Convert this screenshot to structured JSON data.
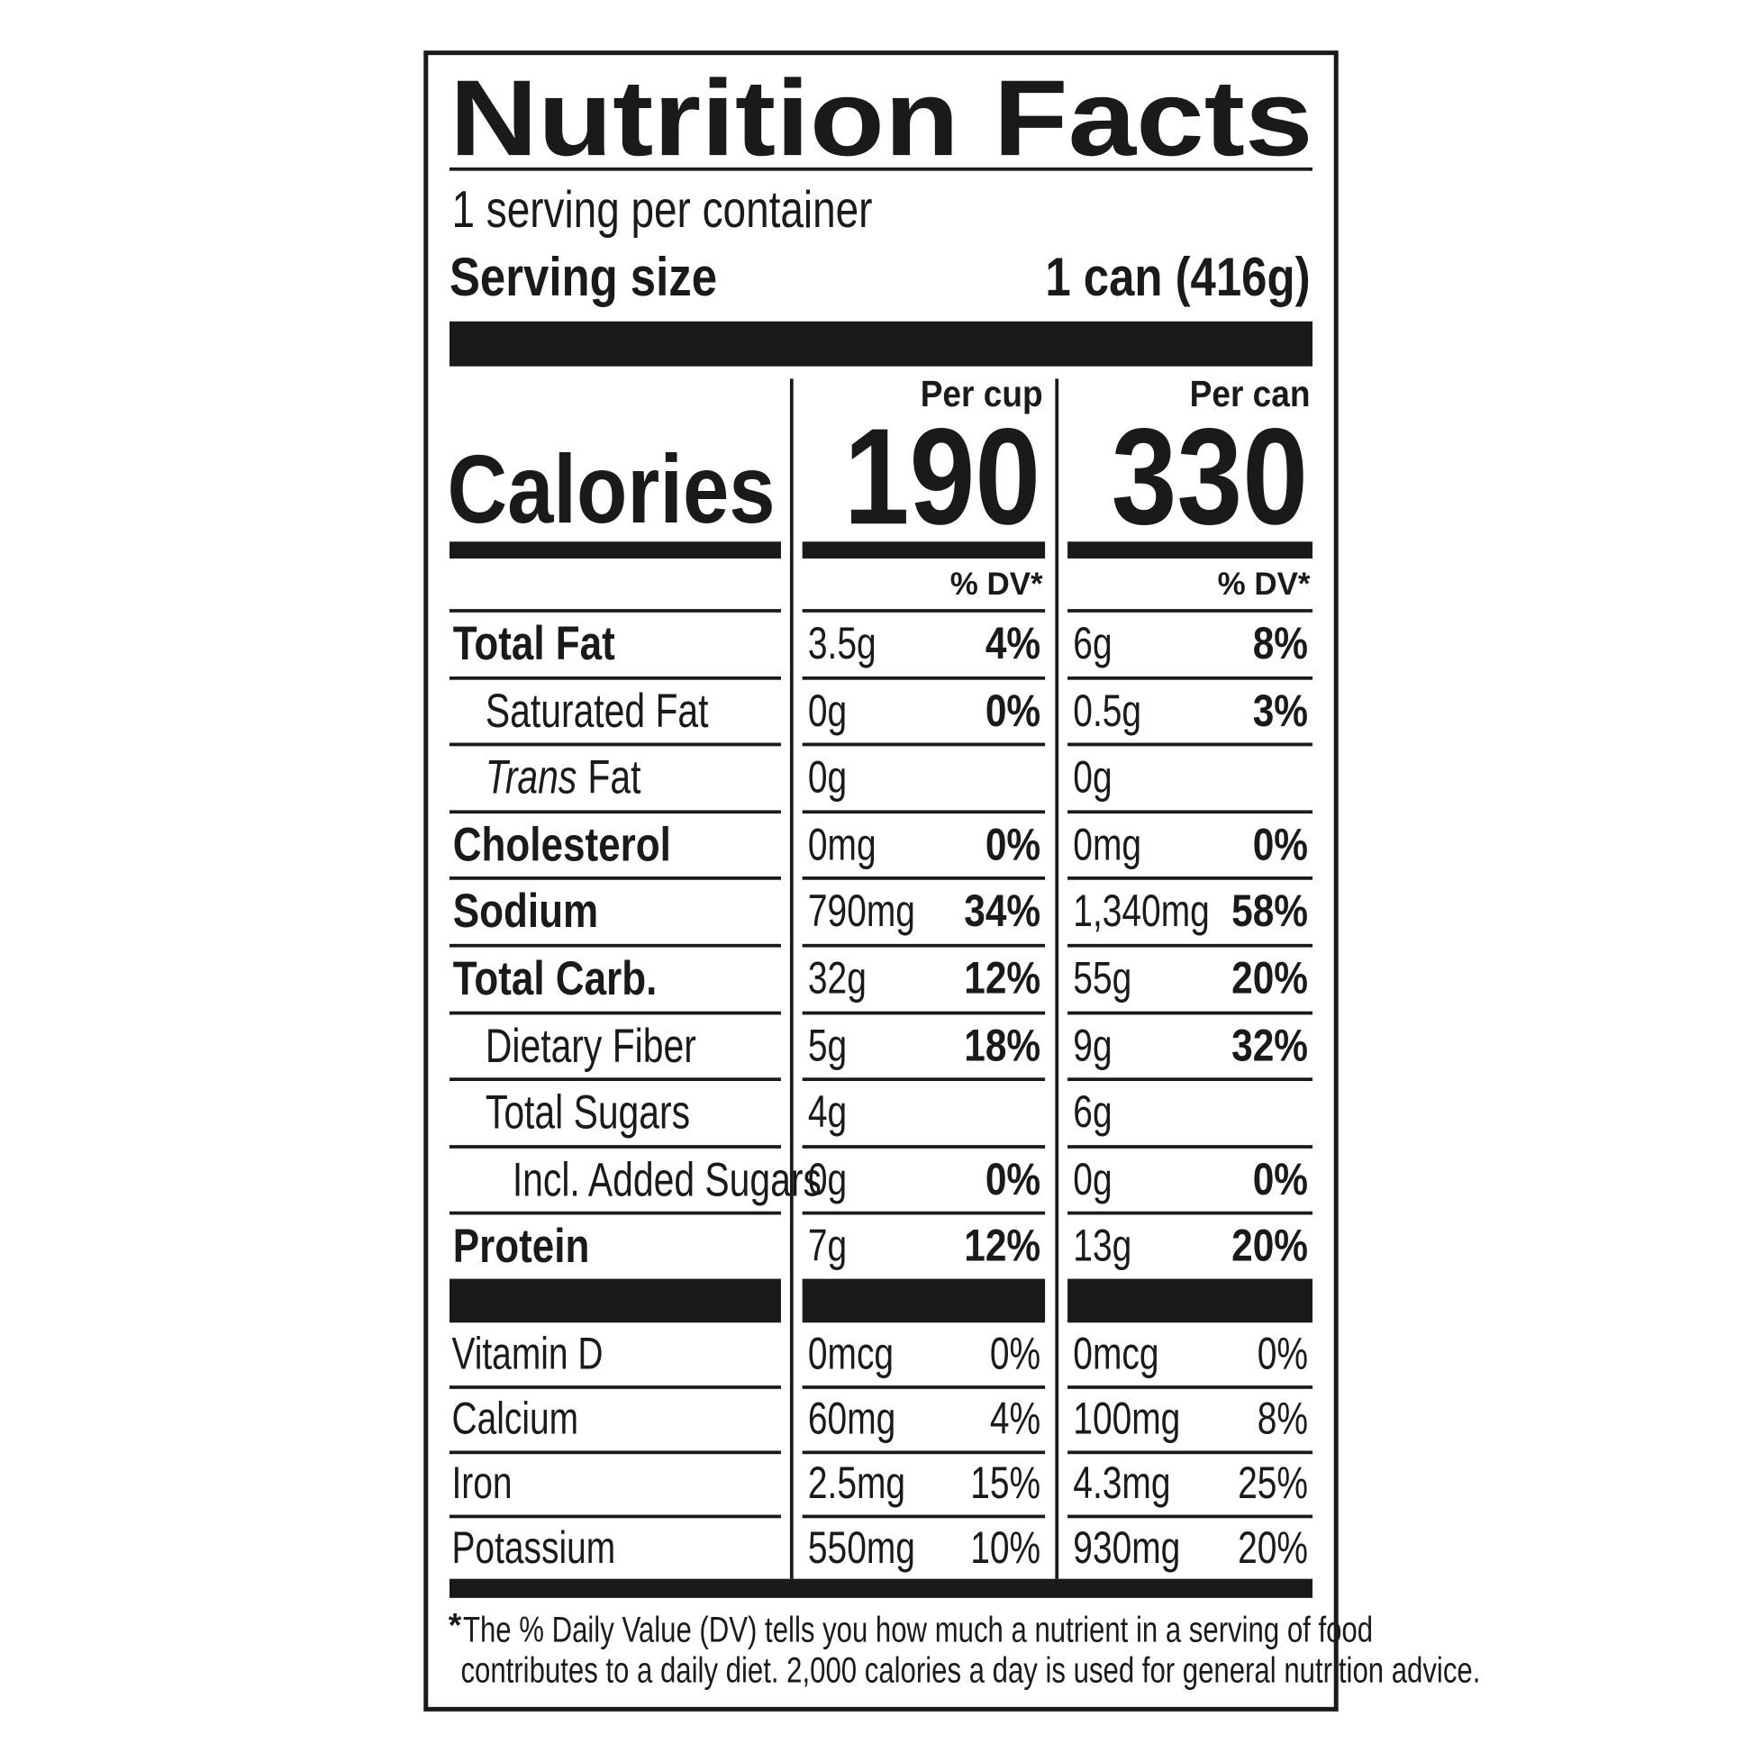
{
  "header": {
    "title": "Nutrition Facts",
    "servings": "1 serving per container",
    "serving_size_label": "Serving size",
    "serving_size_value": "1 can (416g)"
  },
  "calories_label": "Calories",
  "columns": [
    {
      "heading": "Per cup",
      "calories": 190,
      "dv_heading": "% DV*"
    },
    {
      "heading": "Per can",
      "calories": 330,
      "dv_heading": "% DV*"
    }
  ],
  "nutrients": [
    {
      "name": "Total Fat",
      "bold": true,
      "level": 0,
      "per_cup": [
        "3.5g",
        "4%"
      ],
      "per_can": [
        "6g",
        "8%"
      ]
    },
    {
      "name": "Saturated Fat",
      "bold": false,
      "level": 1,
      "per_cup": [
        "0g",
        "0%"
      ],
      "per_can": [
        "0.5g",
        "3%"
      ]
    },
    {
      "name_prefix": "Trans",
      "name": "Fat",
      "bold": false,
      "level": 1,
      "per_cup": [
        "0g"
      ],
      "per_can": [
        "0g"
      ]
    },
    {
      "name": "Cholesterol",
      "bold": true,
      "level": 0,
      "per_cup": [
        "0mg",
        "0%"
      ],
      "per_can": [
        "0mg",
        "0%"
      ]
    },
    {
      "name": "Sodium",
      "bold": true,
      "level": 0,
      "per_cup": [
        "790mg",
        "34%"
      ],
      "per_can": [
        "1,340mg",
        "58%"
      ]
    },
    {
      "name": "Total Carb.",
      "bold": true,
      "level": 0,
      "per_cup": [
        "32g",
        "12%"
      ],
      "per_can": [
        "55g",
        "20%"
      ]
    },
    {
      "name": "Dietary Fiber",
      "bold": false,
      "level": 1,
      "per_cup": [
        "5g",
        "18%"
      ],
      "per_can": [
        "9g",
        "32%"
      ]
    },
    {
      "name": "Total Sugars",
      "bold": false,
      "level": 1,
      "per_cup": [
        "4g"
      ],
      "per_can": [
        "6g"
      ]
    },
    {
      "name": "Incl. Added Sugars",
      "bold": false,
      "level": 2,
      "per_cup": [
        "0g",
        "0%"
      ],
      "per_can": [
        "0g",
        "0%"
      ]
    },
    {
      "name": "Protein",
      "bold": true,
      "level": 0,
      "per_cup": [
        "7g",
        "12%"
      ],
      "per_can": [
        "13g",
        "20%"
      ]
    }
  ],
  "vitamins": [
    {
      "name": "Vitamin D",
      "per_cup": [
        "0mcg",
        "0%"
      ],
      "per_can": [
        "0mcg",
        "0%"
      ]
    },
    {
      "name": "Calcium",
      "per_cup": [
        "60mg",
        "4%"
      ],
      "per_can": [
        "100mg",
        "8%"
      ]
    },
    {
      "name": "Iron",
      "per_cup": [
        "2.5mg",
        "15%"
      ],
      "per_can": [
        "4.3mg",
        "25%"
      ]
    },
    {
      "name": "Potassium",
      "per_cup": [
        "550mg",
        "10%"
      ],
      "per_can": [
        "930mg",
        "20%"
      ]
    }
  ],
  "footnote": {
    "mark": "*",
    "lines": [
      "The % Daily Value (DV) tells you how much a nutrient in a serving of food",
      "contributes to a daily diet. 2,000 calories a day is used for general nutrition advice."
    ]
  }
}
